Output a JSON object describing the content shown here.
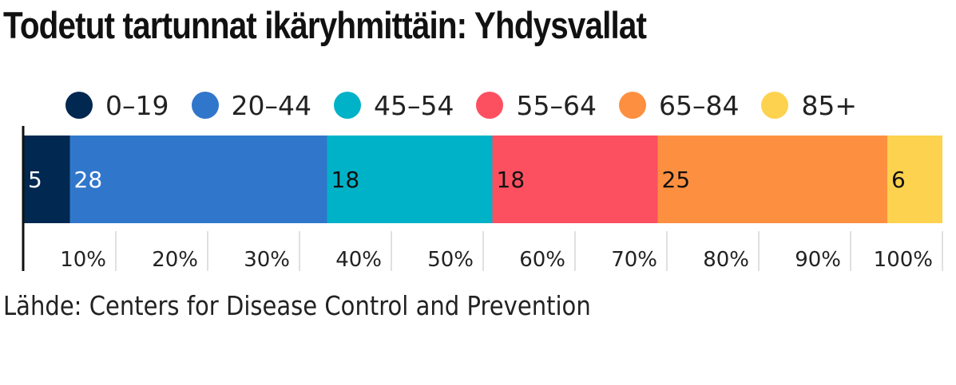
{
  "title": "Todetut tartunnat ikäryhmittäin: Yhdysvallat",
  "source": "Lähde: Centers for Disease Control and Prevention",
  "chart_data": {
    "type": "bar",
    "orientation": "horizontal",
    "stacked": true,
    "title": "Todetut tartunnat ikäryhmittäin: Yhdysvallat",
    "xlabel": "",
    "ylabel": "",
    "xlim": [
      0,
      100
    ],
    "x_ticks": [
      "10%",
      "20%",
      "30%",
      "40%",
      "50%",
      "60%",
      "70%",
      "80%",
      "90%",
      "100%"
    ],
    "legend_position": "top",
    "grid": true,
    "series": [
      {
        "name": "0–19",
        "value": 5,
        "label": "5",
        "color": "#002850",
        "label_color": "#ffffff"
      },
      {
        "name": "20–44",
        "value": 28,
        "label": "28",
        "color": "#3077cc",
        "label_color": "#ffffff"
      },
      {
        "name": "45–54",
        "value": 18,
        "label": "18",
        "color": "#00b2c8",
        "label_color": "#111111"
      },
      {
        "name": "55–64",
        "value": 18,
        "label": "18",
        "color": "#fc5061",
        "label_color": "#111111"
      },
      {
        "name": "65–84",
        "value": 25,
        "label": "25",
        "color": "#fd9040",
        "label_color": "#111111"
      },
      {
        "name": "85+",
        "value": 6,
        "label": "6",
        "color": "#fdd24e",
        "label_color": "#111111"
      }
    ]
  }
}
